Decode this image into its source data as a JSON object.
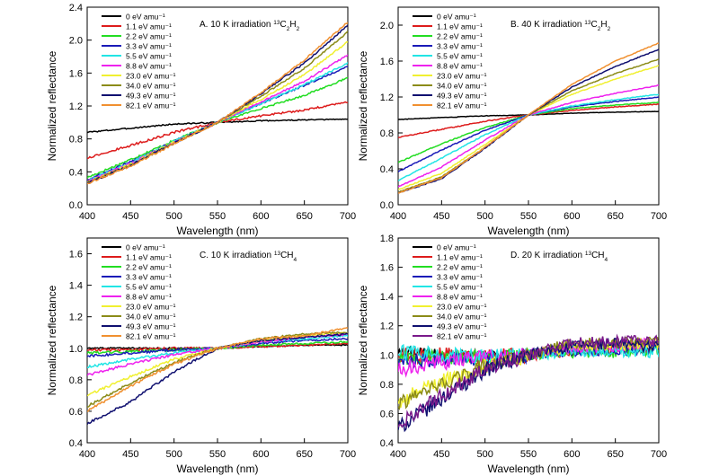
{
  "chart_data": [
    {
      "type": "line",
      "title": "A. 10 K irradiation",
      "title_sup": "13",
      "title_parts": [
        {
          "t": "A. 10 K irradiation "
        },
        {
          "t": "13",
          "s": "sup"
        },
        {
          "t": "C"
        },
        {
          "t": "2",
          "s": "sub"
        },
        {
          "t": "H"
        },
        {
          "t": "2",
          "s": "sub"
        }
      ],
      "xlabel": "Wavelength (nm)",
      "ylabel": "Normalized reflectance",
      "xlim": [
        400,
        700
      ],
      "ylim": [
        0.0,
        2.4
      ],
      "xticks": [
        "400",
        "450",
        "500",
        "550",
        "600",
        "650",
        "700"
      ],
      "yticks": [
        "0.0",
        "0.4",
        "0.8",
        "1.2",
        "1.6",
        "2.0",
        "2.4"
      ],
      "legend_position": "top-left",
      "series": [
        {
          "name": "0 eV amu⁻¹",
          "x": [
            400,
            450,
            500,
            550,
            600,
            650,
            700
          ],
          "y": [
            0.88,
            0.93,
            0.98,
            1.0,
            1.02,
            1.03,
            1.04
          ]
        },
        {
          "name": "1.1 eV amu⁻¹",
          "x": [
            400,
            450,
            500,
            550,
            600,
            650,
            700
          ],
          "y": [
            0.57,
            0.72,
            0.88,
            1.0,
            1.08,
            1.15,
            1.25
          ]
        },
        {
          "name": "2.2 eV amu⁻¹",
          "x": [
            400,
            450,
            500,
            550,
            600,
            650,
            700
          ],
          "y": [
            0.33,
            0.55,
            0.78,
            1.0,
            1.17,
            1.33,
            1.54
          ]
        },
        {
          "name": "3.3 eV amu⁻¹",
          "x": [
            400,
            450,
            500,
            550,
            600,
            650,
            700
          ],
          "y": [
            0.3,
            0.52,
            0.77,
            1.0,
            1.23,
            1.45,
            1.68
          ]
        },
        {
          "name": "5.5 eV amu⁻¹",
          "x": [
            400,
            450,
            500,
            550,
            600,
            650,
            700
          ],
          "y": [
            0.29,
            0.51,
            0.77,
            1.0,
            1.23,
            1.46,
            1.72
          ]
        },
        {
          "name": "8.8 eV amu⁻¹",
          "x": [
            400,
            450,
            500,
            550,
            600,
            650,
            700
          ],
          "y": [
            0.28,
            0.5,
            0.76,
            1.0,
            1.25,
            1.5,
            1.82
          ]
        },
        {
          "name": "23.0 eV amu⁻¹",
          "x": [
            400,
            450,
            500,
            550,
            600,
            650,
            700
          ],
          "y": [
            0.27,
            0.49,
            0.76,
            1.0,
            1.28,
            1.58,
            1.98
          ]
        },
        {
          "name": "34.0 eV amu⁻¹",
          "x": [
            400,
            450,
            500,
            550,
            600,
            650,
            700
          ],
          "y": [
            0.27,
            0.48,
            0.75,
            1.0,
            1.32,
            1.66,
            2.1
          ]
        },
        {
          "name": "49.3 eV amu⁻¹",
          "x": [
            400,
            450,
            500,
            550,
            600,
            650,
            700
          ],
          "y": [
            0.26,
            0.48,
            0.75,
            1.0,
            1.35,
            1.72,
            2.18
          ]
        },
        {
          "name": "82.1 eV amu⁻¹",
          "x": [
            400,
            450,
            500,
            550,
            600,
            650,
            700
          ],
          "y": [
            0.26,
            0.47,
            0.74,
            1.0,
            1.36,
            1.76,
            2.22
          ]
        }
      ]
    },
    {
      "type": "line",
      "title_parts": [
        {
          "t": "B. 40 K irradiation "
        },
        {
          "t": "13",
          "s": "sup"
        },
        {
          "t": "C"
        },
        {
          "t": "2",
          "s": "sub"
        },
        {
          "t": "H"
        },
        {
          "t": "2",
          "s": "sub"
        }
      ],
      "xlabel": "Wavelength (nm)",
      "ylabel": "Normalized reflectance",
      "xlim": [
        400,
        700
      ],
      "ylim": [
        0.0,
        2.2
      ],
      "xticks": [
        "400",
        "450",
        "500",
        "550",
        "600",
        "650",
        "700"
      ],
      "yticks": [
        "0.0",
        "0.4",
        "0.8",
        "1.2",
        "1.6",
        "2.0"
      ],
      "legend_position": "top-left",
      "series": [
        {
          "name": "0 eV amu⁻¹",
          "x": [
            400,
            450,
            500,
            550,
            600,
            650,
            700
          ],
          "y": [
            0.95,
            0.97,
            0.99,
            1.0,
            1.02,
            1.03,
            1.04
          ]
        },
        {
          "name": "1.1 eV amu⁻¹",
          "x": [
            400,
            450,
            500,
            550,
            600,
            650,
            700
          ],
          "y": [
            0.75,
            0.84,
            0.93,
            1.0,
            1.05,
            1.09,
            1.12
          ]
        },
        {
          "name": "2.2 eV amu⁻¹",
          "x": [
            400,
            450,
            500,
            550,
            600,
            650,
            700
          ],
          "y": [
            0.47,
            0.68,
            0.86,
            1.0,
            1.07,
            1.11,
            1.14
          ]
        },
        {
          "name": "3.3 eV amu⁻¹",
          "x": [
            400,
            450,
            500,
            550,
            600,
            650,
            700
          ],
          "y": [
            0.37,
            0.61,
            0.83,
            1.0,
            1.09,
            1.15,
            1.2
          ]
        },
        {
          "name": "5.5 eV amu⁻¹",
          "x": [
            400,
            450,
            500,
            550,
            600,
            650,
            700
          ],
          "y": [
            0.27,
            0.52,
            0.78,
            1.0,
            1.1,
            1.17,
            1.23
          ]
        },
        {
          "name": "8.8 eV amu⁻¹",
          "x": [
            400,
            450,
            500,
            550,
            600,
            650,
            700
          ],
          "y": [
            0.2,
            0.42,
            0.72,
            1.0,
            1.14,
            1.24,
            1.33
          ]
        },
        {
          "name": "23.0 eV amu⁻¹",
          "x": [
            400,
            450,
            500,
            550,
            600,
            650,
            700
          ],
          "y": [
            0.17,
            0.35,
            0.67,
            1.0,
            1.23,
            1.4,
            1.55
          ]
        },
        {
          "name": "34.0 eV amu⁻¹",
          "x": [
            400,
            450,
            500,
            550,
            600,
            650,
            700
          ],
          "y": [
            0.14,
            0.31,
            0.64,
            1.0,
            1.27,
            1.46,
            1.62
          ]
        },
        {
          "name": "49.3 eV amu⁻¹",
          "x": [
            400,
            450,
            500,
            550,
            600,
            650,
            700
          ],
          "y": [
            0.13,
            0.29,
            0.63,
            1.0,
            1.31,
            1.54,
            1.73
          ]
        },
        {
          "name": "82.1 eV amu⁻¹",
          "x": [
            400,
            450,
            500,
            550,
            600,
            650,
            700
          ],
          "y": [
            0.13,
            0.3,
            0.64,
            1.0,
            1.34,
            1.6,
            1.8
          ]
        }
      ]
    },
    {
      "type": "line",
      "title_parts": [
        {
          "t": "C. 10 K irradiation "
        },
        {
          "t": "13",
          "s": "sup"
        },
        {
          "t": "CH"
        },
        {
          "t": "4",
          "s": "sub"
        }
      ],
      "xlabel": "Wavelength (nm)",
      "ylabel": "Normalized reflectance",
      "xlim": [
        400,
        700
      ],
      "ylim": [
        0.4,
        1.7
      ],
      "xticks": [
        "400",
        "450",
        "500",
        "550",
        "600",
        "650",
        "700"
      ],
      "yticks": [
        "0.4",
        "0.6",
        "0.8",
        "1.0",
        "1.2",
        "1.4",
        "1.6"
      ],
      "legend_position": "top-left",
      "series": [
        {
          "name": "0 eV amu⁻¹",
          "x": [
            400,
            450,
            500,
            550,
            600,
            650,
            700
          ],
          "y": [
            1.0,
            1.0,
            1.0,
            1.0,
            1.01,
            1.02,
            1.02
          ]
        },
        {
          "name": "1.1 eV amu⁻¹",
          "x": [
            400,
            450,
            500,
            550,
            600,
            650,
            700
          ],
          "y": [
            0.99,
            0.99,
            1.0,
            1.0,
            1.01,
            1.02,
            1.03
          ]
        },
        {
          "name": "2.2 eV amu⁻¹",
          "x": [
            400,
            450,
            500,
            550,
            600,
            650,
            700
          ],
          "y": [
            0.97,
            0.98,
            0.99,
            1.0,
            1.02,
            1.03,
            1.04
          ]
        },
        {
          "name": "3.3 eV amu⁻¹",
          "x": [
            400,
            450,
            500,
            550,
            600,
            650,
            700
          ],
          "y": [
            0.95,
            0.97,
            0.99,
            1.0,
            1.03,
            1.05,
            1.06
          ]
        },
        {
          "name": "5.5 eV amu⁻¹",
          "x": [
            400,
            450,
            500,
            550,
            600,
            650,
            700
          ],
          "y": [
            0.88,
            0.93,
            0.97,
            1.0,
            1.04,
            1.06,
            1.08
          ]
        },
        {
          "name": "8.8 eV amu⁻¹",
          "x": [
            400,
            450,
            500,
            550,
            600,
            650,
            700
          ],
          "y": [
            0.83,
            0.9,
            0.96,
            1.0,
            1.04,
            1.07,
            1.09
          ]
        },
        {
          "name": "23.0 eV amu⁻¹",
          "x": [
            400,
            450,
            500,
            550,
            600,
            650,
            700
          ],
          "y": [
            0.7,
            0.82,
            0.93,
            1.0,
            1.05,
            1.08,
            1.1
          ]
        },
        {
          "name": "34.0 eV amu⁻¹",
          "x": [
            400,
            450,
            500,
            550,
            600,
            650,
            700
          ],
          "y": [
            0.63,
            0.78,
            0.91,
            1.0,
            1.06,
            1.09,
            1.1
          ]
        },
        {
          "name": "49.3 eV amu⁻¹",
          "x": [
            400,
            450,
            500,
            550,
            600,
            650,
            700
          ],
          "y": [
            0.52,
            0.66,
            0.85,
            1.0,
            1.05,
            1.07,
            1.09
          ]
        },
        {
          "name": "82.1 eV amu⁻¹",
          "x": [
            400,
            450,
            500,
            550,
            600,
            650,
            700
          ],
          "y": [
            0.6,
            0.76,
            0.9,
            1.0,
            1.06,
            1.08,
            1.13
          ]
        }
      ]
    },
    {
      "type": "line",
      "title_parts": [
        {
          "t": "D. 20 K irradiation "
        },
        {
          "t": "13",
          "s": "sup"
        },
        {
          "t": "CH"
        },
        {
          "t": "4",
          "s": "sub"
        }
      ],
      "xlabel": "Wavelength (nm)",
      "ylabel": "Normalized reflectance",
      "xlim": [
        400,
        700
      ],
      "ylim": [
        0.4,
        1.8
      ],
      "xticks": [
        "400",
        "450",
        "500",
        "550",
        "600",
        "650",
        "700"
      ],
      "yticks": [
        "0.4",
        "0.6",
        "0.8",
        "1.0",
        "1.2",
        "1.4",
        "1.6",
        "1.8"
      ],
      "legend_position": "top-left",
      "series": [
        {
          "name": "0 eV amu⁻¹",
          "x": [
            400,
            450,
            500,
            550,
            600,
            650,
            700
          ],
          "y": [
            1.02,
            1.02,
            1.0,
            1.0,
            1.02,
            1.03,
            1.04
          ]
        },
        {
          "name": "1.1 eV amu⁻¹",
          "x": [
            400,
            450,
            500,
            550,
            600,
            650,
            700
          ],
          "y": [
            1.0,
            1.0,
            0.99,
            1.0,
            1.03,
            1.04,
            1.06
          ]
        },
        {
          "name": "2.2 eV amu⁻¹",
          "x": [
            400,
            450,
            500,
            550,
            600,
            650,
            700
          ],
          "y": [
            0.98,
            0.98,
            0.98,
            1.0,
            1.02,
            1.02,
            1.04
          ]
        },
        {
          "name": "3.3 eV amu⁻¹",
          "x": [
            400,
            450,
            500,
            550,
            600,
            650,
            700
          ],
          "y": [
            0.95,
            0.97,
            0.98,
            1.0,
            1.03,
            1.03,
            1.04
          ]
        },
        {
          "name": "5.5 eV amu⁻¹",
          "x": [
            400,
            450,
            500,
            550,
            600,
            650,
            700
          ],
          "y": [
            1.02,
            1.0,
            0.99,
            1.0,
            1.03,
            1.03,
            1.02
          ]
        },
        {
          "name": "8.8 eV amu⁻¹",
          "x": [
            400,
            450,
            500,
            550,
            600,
            650,
            700
          ],
          "y": [
            0.9,
            0.95,
            0.98,
            1.0,
            1.05,
            1.06,
            1.08
          ]
        },
        {
          "name": "23.0 eV amu⁻¹",
          "x": [
            400,
            450,
            500,
            550,
            600,
            650,
            700
          ],
          "y": [
            0.68,
            0.82,
            0.92,
            1.0,
            1.06,
            1.07,
            1.08
          ]
        },
        {
          "name": "34.0 eV amu⁻¹",
          "x": [
            400,
            450,
            500,
            550,
            600,
            650,
            700
          ],
          "y": [
            0.66,
            0.8,
            0.93,
            1.0,
            1.08,
            1.08,
            1.09
          ]
        },
        {
          "name": "49.3 eV amu⁻¹",
          "x": [
            400,
            450,
            500,
            550,
            600,
            650,
            700
          ],
          "y": [
            0.5,
            0.7,
            0.9,
            1.0,
            1.06,
            1.08,
            1.06
          ]
        },
        {
          "name": "82.1 eV amu⁻¹",
          "x": [
            400,
            450,
            500,
            550,
            600,
            650,
            700
          ],
          "y": [
            0.52,
            0.72,
            0.9,
            1.0,
            1.08,
            1.09,
            1.1
          ]
        }
      ]
    }
  ],
  "series_colors": [
    "#000000",
    "#dd1c1c",
    "#22dd22",
    "#1a1ab8",
    "#22e5e5",
    "#ee22ee",
    "#f0f030",
    "#8b8b18",
    "#101070",
    "#f09030"
  ],
  "panel_d_series_colors": [
    "#000000",
    "#dd1c1c",
    "#22dd22",
    "#1a1ab8",
    "#22e5e5",
    "#ee22ee",
    "#f0f030",
    "#8b8b18",
    "#101070",
    "#7a1a8a"
  ]
}
